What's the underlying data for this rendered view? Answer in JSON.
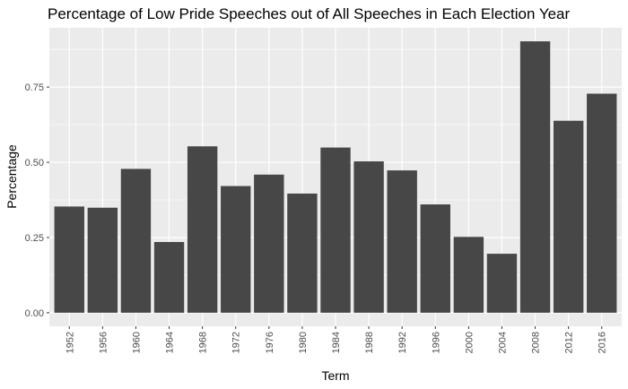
{
  "chart_data": {
    "type": "bar",
    "title": "Percentage of Low Pride Speeches out of All Speeches in Each Election Year",
    "xlabel": "Term",
    "ylabel": "Percentage",
    "categories": [
      "1952",
      "1956",
      "1960",
      "1964",
      "1968",
      "1972",
      "1976",
      "1980",
      "1984",
      "1988",
      "1992",
      "1996",
      "2000",
      "2004",
      "2008",
      "2012",
      "2016"
    ],
    "values": [
      0.353,
      0.349,
      0.478,
      0.235,
      0.553,
      0.421,
      0.459,
      0.396,
      0.549,
      0.503,
      0.473,
      0.36,
      0.252,
      0.196,
      0.902,
      0.638,
      0.728
    ],
    "ylim": [
      -0.045,
      0.947
    ],
    "yticks": [
      0.0,
      0.25,
      0.5,
      0.75
    ],
    "ytick_labels": [
      "0.00",
      "0.25",
      "0.50",
      "0.75"
    ],
    "grid": true,
    "colors": {
      "bar": "#474747",
      "panel": "#ebebeb",
      "grid": "#ffffff"
    }
  }
}
